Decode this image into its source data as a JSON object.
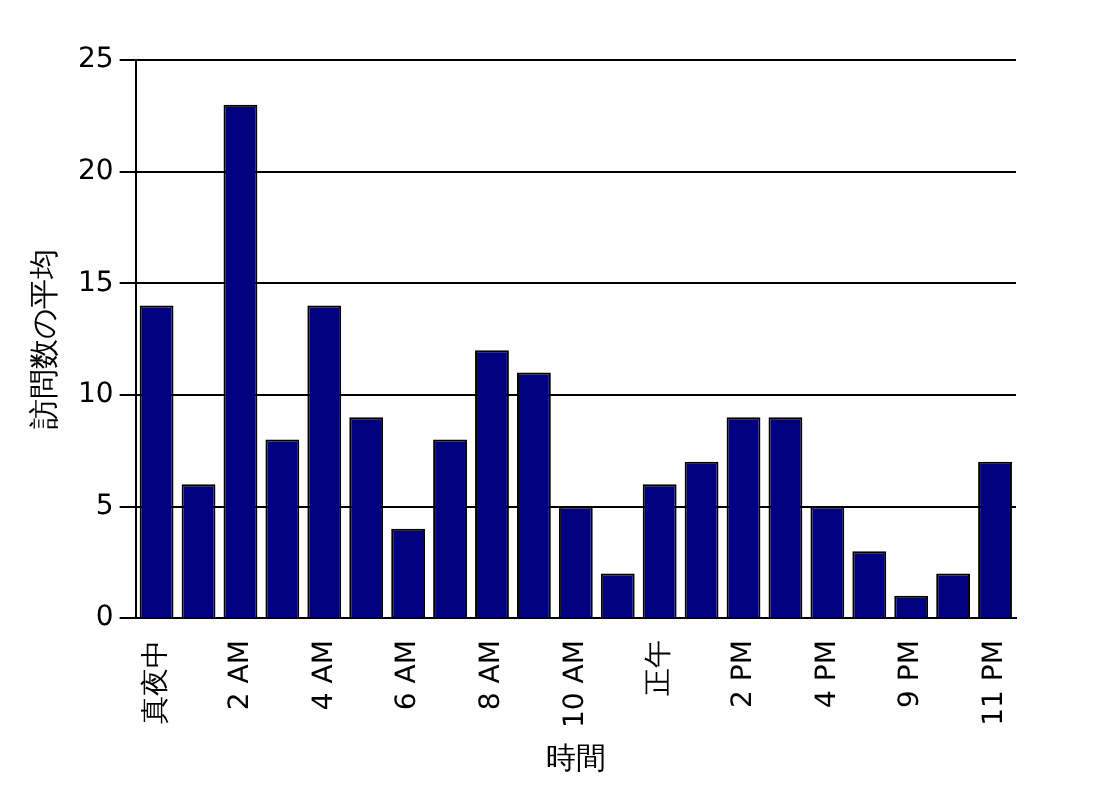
{
  "chart_data": {
    "type": "bar",
    "xlabel": "時間",
    "ylabel": "訪問数の平均",
    "categories": [
      "真夜中",
      null,
      "2 AM",
      null,
      "4 AM",
      null,
      "6 AM",
      null,
      "8 AM",
      null,
      "10 AM",
      null,
      "正午",
      null,
      "2 PM",
      null,
      "4 PM",
      null,
      "9 PM",
      null,
      "11 PM"
    ],
    "values": [
      14,
      6,
      23,
      8,
      14,
      9,
      4,
      8,
      12,
      11,
      5,
      2,
      6,
      7,
      9,
      9,
      5,
      3,
      1,
      2,
      7
    ],
    "color": "#000080",
    "ylim": [
      0,
      25
    ],
    "yticks": [
      0,
      5,
      10,
      15,
      20,
      25
    ],
    "grid": "y",
    "legend": false
  }
}
